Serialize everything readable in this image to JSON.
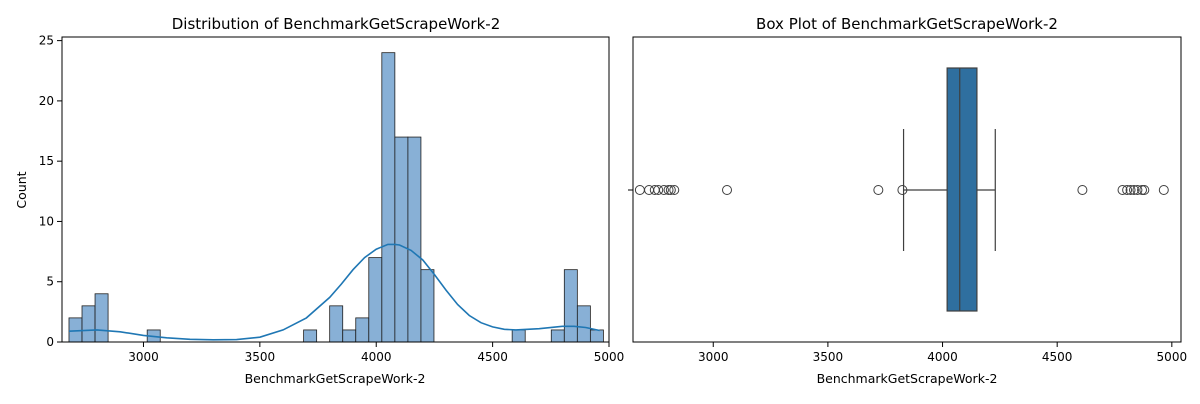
{
  "chart_data": [
    {
      "type": "bar",
      "subtype": "histogram",
      "title": "Distribution of BenchmarkGetScrapeWork-2",
      "xlabel": "BenchmarkGetScrapeWork-2",
      "ylabel": "Count",
      "xlim": [
        2650,
        5000
      ],
      "ylim": [
        0,
        25.3
      ],
      "xticks": [
        3000,
        3500,
        4000,
        4500,
        5000
      ],
      "yticks": [
        0,
        5,
        10,
        15,
        20,
        25
      ],
      "bin_width": 56,
      "bins": [
        {
          "x0": 2680,
          "count": 2
        },
        {
          "x0": 2736,
          "count": 3
        },
        {
          "x0": 2792,
          "count": 4
        },
        {
          "x0": 3016,
          "count": 1
        },
        {
          "x0": 3688,
          "count": 1
        },
        {
          "x0": 3800,
          "count": 3
        },
        {
          "x0": 3856,
          "count": 1
        },
        {
          "x0": 3912,
          "count": 2
        },
        {
          "x0": 3968,
          "count": 7
        },
        {
          "x0": 4024,
          "count": 24
        },
        {
          "x0": 4080,
          "count": 17
        },
        {
          "x0": 4136,
          "count": 17
        },
        {
          "x0": 4192,
          "count": 6
        },
        {
          "x0": 4584,
          "count": 1
        },
        {
          "x0": 4752,
          "count": 1
        },
        {
          "x0": 4808,
          "count": 6
        },
        {
          "x0": 4864,
          "count": 3
        },
        {
          "x0": 4920,
          "count": 1
        }
      ],
      "kde": {
        "x": [
          2680,
          2800,
          2900,
          3000,
          3100,
          3200,
          3300,
          3400,
          3500,
          3600,
          3700,
          3800,
          3850,
          3900,
          3950,
          4000,
          4050,
          4080,
          4100,
          4150,
          4200,
          4250,
          4300,
          4350,
          4400,
          4450,
          4500,
          4550,
          4600,
          4700,
          4800,
          4850,
          4900,
          4960
        ],
        "y": [
          0.9,
          1.0,
          0.85,
          0.55,
          0.35,
          0.22,
          0.18,
          0.2,
          0.4,
          1.0,
          2.0,
          3.7,
          4.8,
          6.0,
          7.0,
          7.7,
          8.1,
          8.1,
          8.05,
          7.6,
          6.8,
          5.6,
          4.3,
          3.1,
          2.2,
          1.6,
          1.25,
          1.05,
          1.0,
          1.1,
          1.3,
          1.3,
          1.2,
          0.95
        ]
      }
    },
    {
      "type": "box",
      "title": "Box Plot of BenchmarkGetScrapeWork-2",
      "xlabel": "BenchmarkGetScrapeWork-2",
      "xlim": [
        2650,
        5040
      ],
      "xticks": [
        3000,
        3500,
        4000,
        4500,
        5000
      ],
      "q1": 4020,
      "median": 4075,
      "q3": 4150,
      "whisker_low": 3830,
      "whisker_high": 4230,
      "fliers": [
        2680,
        2720,
        2745,
        2760,
        2785,
        2805,
        2815,
        2830,
        3060,
        3720,
        3825,
        4610,
        4785,
        4805,
        4820,
        4835,
        4850,
        4870,
        4880,
        4965
      ]
    }
  ]
}
